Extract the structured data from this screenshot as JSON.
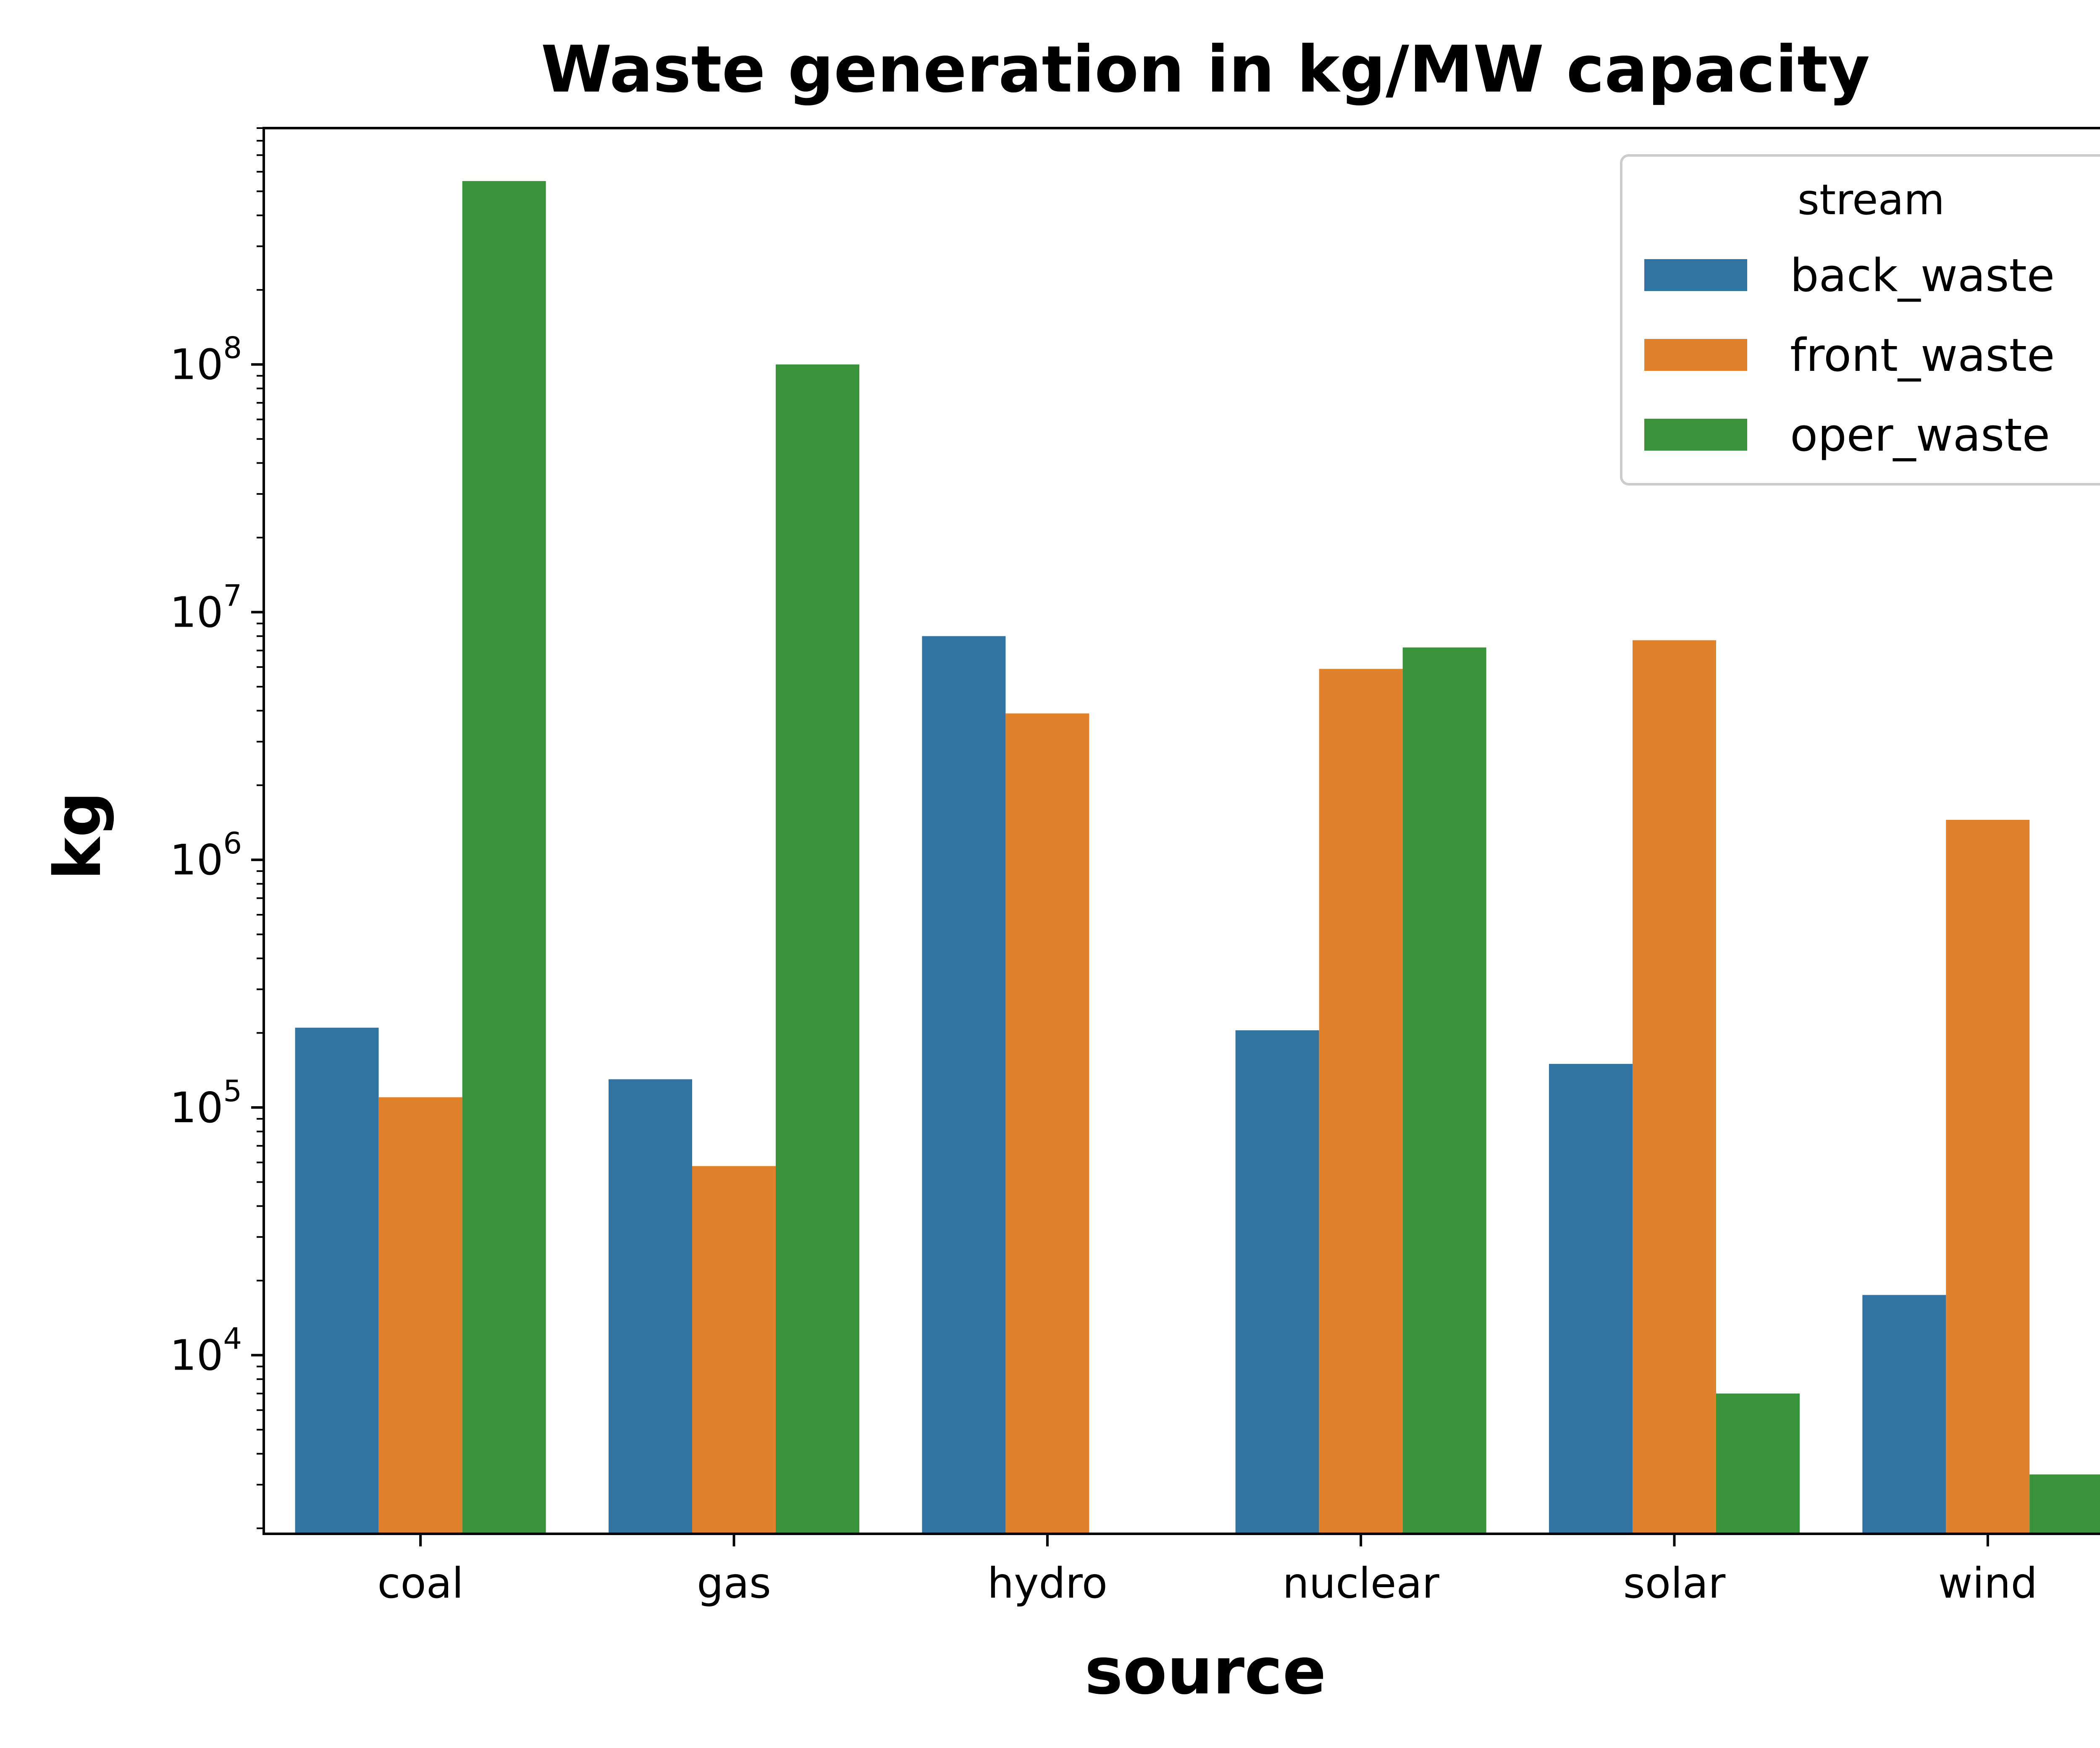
{
  "chart_data": {
    "type": "bar",
    "title": "Waste generation in kg/MW capacity",
    "xlabel": "source",
    "ylabel": "kg",
    "yscale": "log",
    "ylim": [
      1900,
      900000000
    ],
    "y_ticks": [
      {
        "value": 10000,
        "base": "10",
        "exp": "4"
      },
      {
        "value": 100000,
        "base": "10",
        "exp": "5"
      },
      {
        "value": 1000000,
        "base": "10",
        "exp": "6"
      },
      {
        "value": 10000000,
        "base": "10",
        "exp": "7"
      },
      {
        "value": 100000000,
        "base": "10",
        "exp": "8"
      }
    ],
    "categories": [
      "coal",
      "gas",
      "hydro",
      "nuclear",
      "solar",
      "wind"
    ],
    "legend": {
      "title": "stream",
      "position": "top-right"
    },
    "series": [
      {
        "name": "back_waste",
        "color": "#3274a1",
        "values": [
          210000,
          130000,
          8000000,
          205000,
          150000,
          17500
        ]
      },
      {
        "name": "front_waste",
        "color": "#e1812c",
        "values": [
          110000,
          58000,
          3900000,
          5900000,
          7700000,
          1450000
        ]
      },
      {
        "name": "oper_waste",
        "color": "#3a923a",
        "values": [
          550000000,
          100000000,
          null,
          7200000,
          7000,
          3300
        ]
      }
    ],
    "grid": false
  }
}
